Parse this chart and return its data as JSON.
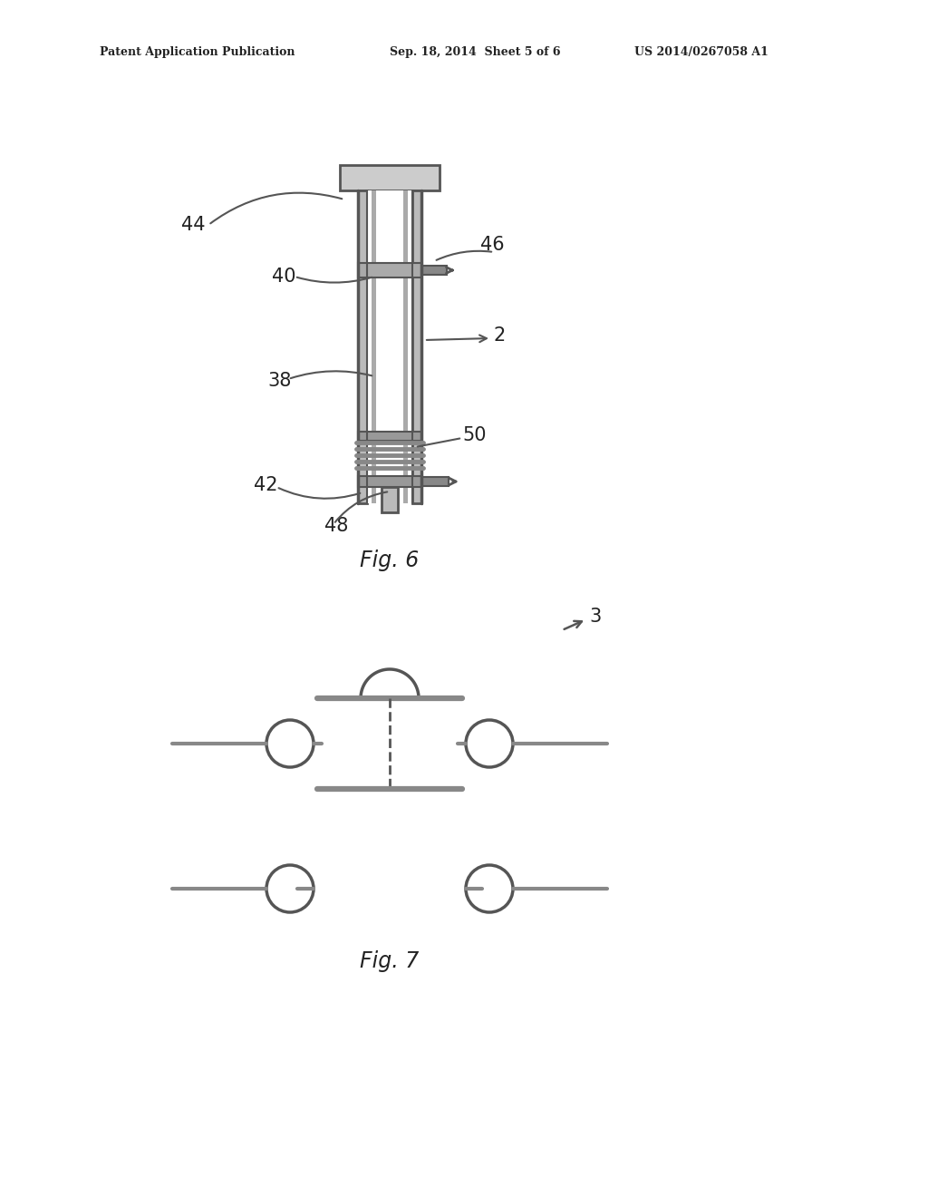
{
  "bg_color": "#ffffff",
  "line_color": "#555555",
  "text_color": "#222222",
  "header_text_left": "Patent Application Publication",
  "header_text_mid": "Sep. 18, 2014  Sheet 5 of 6",
  "header_text_right": "US 2014/0267058 A1",
  "fig6_label": "Fig. 6",
  "fig7_label": "Fig. 7"
}
